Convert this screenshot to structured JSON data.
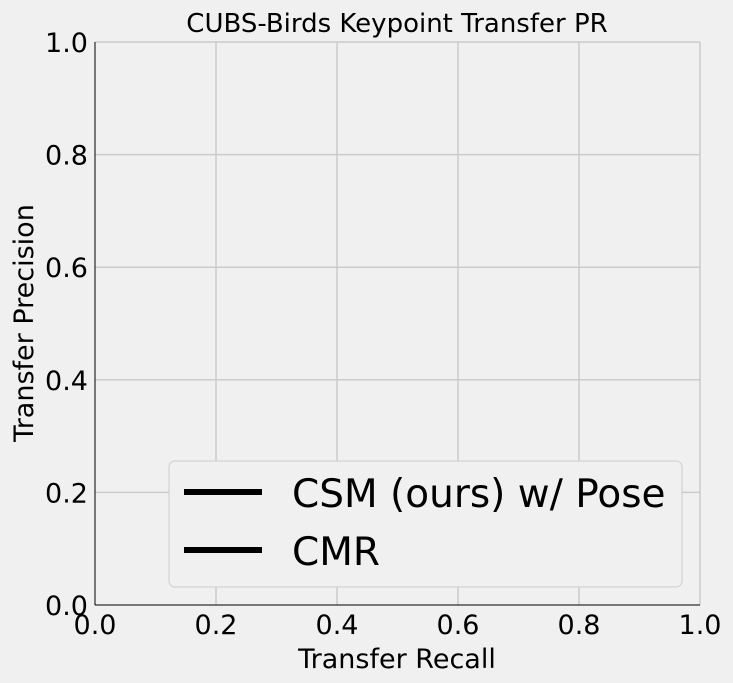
{
  "chart_data": {
    "type": "line",
    "title": "CUBS-Birds Keypoint Transfer PR",
    "xlabel": "Transfer Recall",
    "ylabel": "Transfer Precision",
    "xlim": [
      0.0,
      1.0
    ],
    "ylim": [
      0.0,
      1.0
    ],
    "xticks": [
      "0.0",
      "0.2",
      "0.4",
      "0.6",
      "0.8",
      "1.0"
    ],
    "yticks": [
      "0.0",
      "0.2",
      "0.4",
      "0.6",
      "0.8",
      "1.0"
    ],
    "grid": true,
    "legend_position": "lower-right",
    "series": [
      {
        "name": "CSM (ours) w/ Pose",
        "color": "#000000",
        "x": [],
        "y": []
      },
      {
        "name": "CMR",
        "color": "#000000",
        "x": [],
        "y": []
      }
    ],
    "colors": {
      "background": "#f0f0f0",
      "grid": "#cbcbcb",
      "axis": "#000000",
      "legend_border": "#cccccc"
    }
  }
}
